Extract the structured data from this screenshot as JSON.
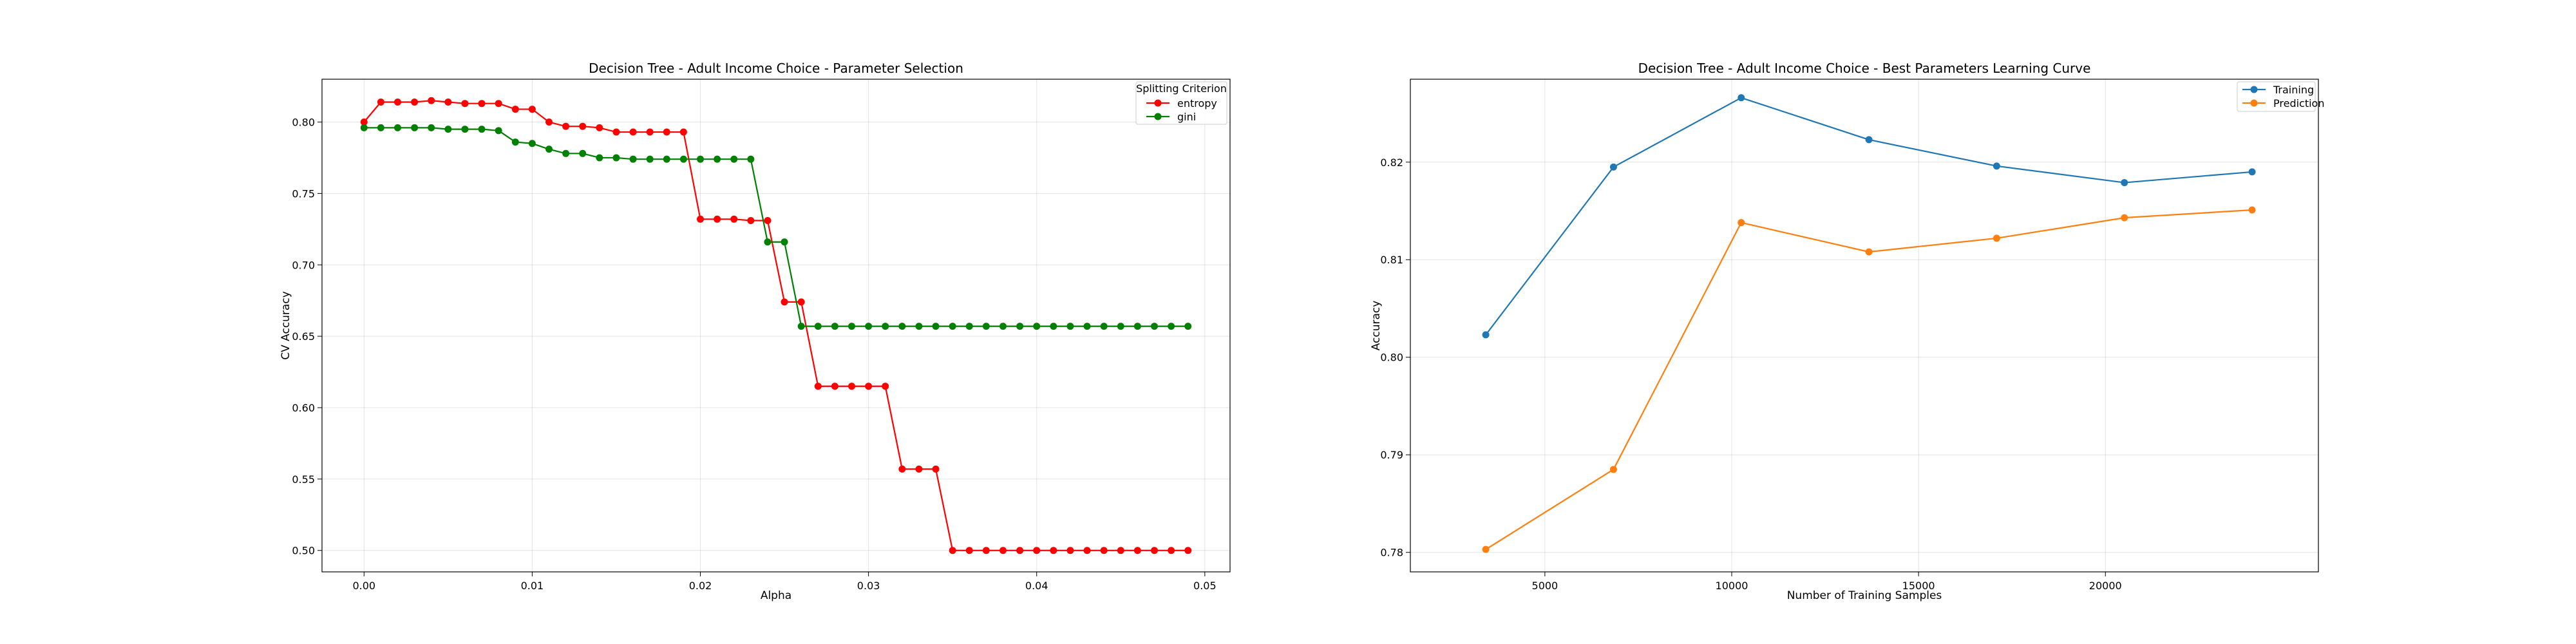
{
  "chart_data": [
    {
      "type": "line",
      "title": "Decision Tree - Adult Income Choice - Parameter Selection",
      "xlabel": "Alpha",
      "ylabel": "CV Accuracy",
      "xlim": [
        -0.0025,
        0.0515
      ],
      "ylim": [
        0.485,
        0.83
      ],
      "xticks": [
        0.0,
        0.01,
        0.02,
        0.03,
        0.04,
        0.05
      ],
      "xtick_labels": [
        "0.00",
        "0.01",
        "0.02",
        "0.03",
        "0.04",
        "0.05"
      ],
      "yticks": [
        0.5,
        0.55,
        0.6,
        0.65,
        0.7,
        0.75,
        0.8
      ],
      "ytick_labels": [
        "0.50",
        "0.55",
        "0.60",
        "0.65",
        "0.70",
        "0.75",
        "0.80"
      ],
      "grid": true,
      "legend_title": "Splitting Criterion",
      "legend_position": "top-right",
      "x": [
        0.0,
        0.001,
        0.002,
        0.003,
        0.004,
        0.005,
        0.006,
        0.007,
        0.008,
        0.009,
        0.01,
        0.011,
        0.012,
        0.013,
        0.014,
        0.015,
        0.016,
        0.017,
        0.018,
        0.019,
        0.02,
        0.021,
        0.022,
        0.023,
        0.024,
        0.025,
        0.026,
        0.027,
        0.028,
        0.029,
        0.03,
        0.031,
        0.032,
        0.033,
        0.034,
        0.035,
        0.036,
        0.037,
        0.038,
        0.039,
        0.04,
        0.041,
        0.042,
        0.043,
        0.044,
        0.045,
        0.046,
        0.047,
        0.048,
        0.049
      ],
      "series": [
        {
          "name": "entropy",
          "color": "#ff0000",
          "values": [
            0.8,
            0.814,
            0.814,
            0.814,
            0.815,
            0.814,
            0.813,
            0.813,
            0.813,
            0.809,
            0.809,
            0.8,
            0.797,
            0.797,
            0.796,
            0.793,
            0.793,
            0.793,
            0.793,
            0.793,
            0.732,
            0.732,
            0.732,
            0.731,
            0.731,
            0.674,
            0.674,
            0.615,
            0.615,
            0.615,
            0.615,
            0.615,
            0.557,
            0.557,
            0.557,
            0.5,
            0.5,
            0.5,
            0.5,
            0.5,
            0.5,
            0.5,
            0.5,
            0.5,
            0.5,
            0.5,
            0.5,
            0.5,
            0.5,
            0.5
          ]
        },
        {
          "name": "gini",
          "color": "#008000",
          "values": [
            0.796,
            0.796,
            0.796,
            0.796,
            0.796,
            0.795,
            0.795,
            0.795,
            0.794,
            0.786,
            0.785,
            0.781,
            0.778,
            0.778,
            0.775,
            0.775,
            0.774,
            0.774,
            0.774,
            0.774,
            0.774,
            0.774,
            0.774,
            0.774,
            0.716,
            0.716,
            0.657,
            0.657,
            0.657,
            0.657,
            0.657,
            0.657,
            0.657,
            0.657,
            0.657,
            0.657,
            0.657,
            0.657,
            0.657,
            0.657,
            0.657,
            0.657,
            0.657,
            0.657,
            0.657,
            0.657,
            0.657,
            0.657,
            0.657,
            0.657
          ]
        }
      ]
    },
    {
      "type": "line",
      "title": "Decision Tree - Adult Income Choice -  Best Parameters Learning Curve",
      "xlabel": "Number of Training Samples",
      "ylabel": "Accuracy",
      "xlim": [
        1400,
        25700
      ],
      "ylim": [
        0.778,
        0.8285
      ],
      "xticks": [
        5000,
        10000,
        15000,
        20000
      ],
      "xtick_labels": [
        "5000",
        "10000",
        "15000",
        "20000"
      ],
      "yticks": [
        0.78,
        0.79,
        0.8,
        0.81,
        0.82
      ],
      "ytick_labels": [
        "0.78",
        "0.79",
        "0.80",
        "0.81",
        "0.82"
      ],
      "grid": true,
      "legend_position": "top-right",
      "x": [
        3418,
        6836,
        10254,
        13672,
        17090,
        20508,
        23926
      ],
      "series": [
        {
          "name": "Training",
          "color": "#1f77b4",
          "values": [
            0.8023,
            0.8195,
            0.8266,
            0.8223,
            0.8196,
            0.8179,
            0.819
          ]
        },
        {
          "name": "Prediction",
          "color": "#ff7f0e",
          "values": [
            0.7803,
            0.7885,
            0.8138,
            0.8108,
            0.8122,
            0.8143,
            0.8151
          ]
        }
      ]
    }
  ]
}
